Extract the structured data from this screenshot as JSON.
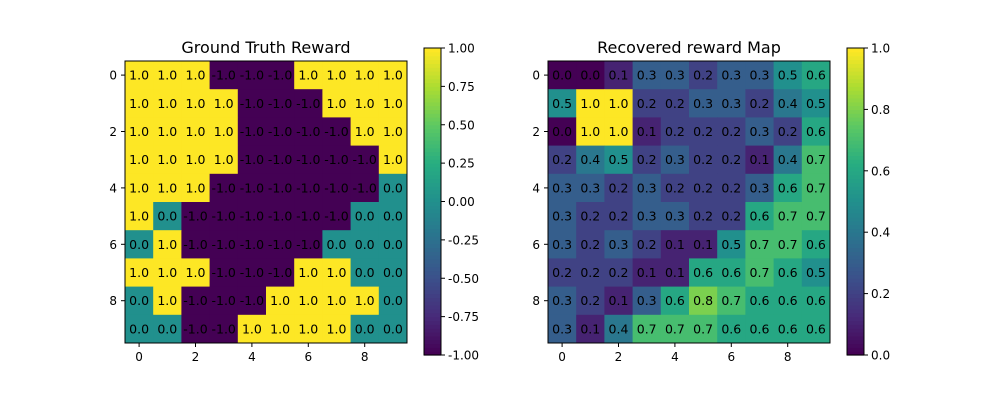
{
  "chart_data": [
    {
      "type": "heatmap",
      "title": "Ground Truth Reward",
      "xlabel": "",
      "ylabel": "",
      "x_ticks": [
        0,
        2,
        4,
        6,
        8
      ],
      "y_ticks": [
        0,
        2,
        4,
        6,
        8
      ],
      "colormap": "viridis",
      "vmin": -1.0,
      "vmax": 1.0,
      "colorbar_ticks": [
        "-1.00",
        "-0.75",
        "-0.50",
        "-0.25",
        "0.00",
        "0.25",
        "0.50",
        "0.75",
        "1.00"
      ],
      "values": [
        [
          1.0,
          1.0,
          1.0,
          -1.0,
          -1.0,
          -1.0,
          1.0,
          1.0,
          1.0,
          1.0
        ],
        [
          1.0,
          1.0,
          1.0,
          1.0,
          -1.0,
          -1.0,
          -1.0,
          1.0,
          1.0,
          1.0
        ],
        [
          1.0,
          1.0,
          1.0,
          1.0,
          -1.0,
          -1.0,
          -1.0,
          -1.0,
          1.0,
          1.0
        ],
        [
          1.0,
          1.0,
          1.0,
          1.0,
          -1.0,
          -1.0,
          -1.0,
          -1.0,
          -1.0,
          1.0
        ],
        [
          1.0,
          1.0,
          1.0,
          -1.0,
          -1.0,
          -1.0,
          -1.0,
          -1.0,
          -1.0,
          0.0
        ],
        [
          1.0,
          0.0,
          -1.0,
          -1.0,
          -1.0,
          -1.0,
          -1.0,
          -1.0,
          0.0,
          0.0
        ],
        [
          0.0,
          1.0,
          -1.0,
          -1.0,
          -1.0,
          -1.0,
          -1.0,
          0.0,
          0.0,
          0.0
        ],
        [
          1.0,
          1.0,
          1.0,
          -1.0,
          -1.0,
          -1.0,
          1.0,
          1.0,
          0.0,
          0.0
        ],
        [
          0.0,
          1.0,
          -1.0,
          -1.0,
          -1.0,
          1.0,
          1.0,
          1.0,
          1.0,
          0.0
        ],
        [
          0.0,
          0.0,
          -1.0,
          -1.0,
          1.0,
          1.0,
          1.0,
          1.0,
          0.0,
          0.0
        ]
      ]
    },
    {
      "type": "heatmap",
      "title": "Recovered reward Map",
      "xlabel": "",
      "ylabel": "",
      "x_ticks": [
        0,
        2,
        4,
        6,
        8
      ],
      "y_ticks": [
        0,
        2,
        4,
        6,
        8
      ],
      "colormap": "viridis",
      "vmin": 0.0,
      "vmax": 1.0,
      "colorbar_ticks": [
        "0.0",
        "0.2",
        "0.4",
        "0.6",
        "0.8",
        "1.0"
      ],
      "values": [
        [
          0.0,
          0.0,
          0.1,
          0.3,
          0.3,
          0.2,
          0.3,
          0.3,
          0.5,
          0.6
        ],
        [
          0.5,
          1.0,
          1.0,
          0.2,
          0.2,
          0.3,
          0.3,
          0.2,
          0.4,
          0.5
        ],
        [
          0.0,
          1.0,
          1.0,
          0.1,
          0.2,
          0.2,
          0.2,
          0.3,
          0.2,
          0.6
        ],
        [
          0.2,
          0.4,
          0.5,
          0.2,
          0.3,
          0.2,
          0.2,
          0.1,
          0.4,
          0.7
        ],
        [
          0.3,
          0.3,
          0.2,
          0.3,
          0.2,
          0.2,
          0.2,
          0.3,
          0.6,
          0.7
        ],
        [
          0.3,
          0.2,
          0.2,
          0.3,
          0.3,
          0.2,
          0.2,
          0.6,
          0.7,
          0.7
        ],
        [
          0.3,
          0.2,
          0.3,
          0.2,
          0.1,
          0.1,
          0.5,
          0.7,
          0.7,
          0.6
        ],
        [
          0.2,
          0.2,
          0.2,
          0.1,
          0.1,
          0.6,
          0.6,
          0.7,
          0.6,
          0.5
        ],
        [
          0.3,
          0.2,
          0.1,
          0.3,
          0.6,
          0.8,
          0.7,
          0.6,
          0.6,
          0.6
        ],
        [
          0.3,
          0.1,
          0.4,
          0.7,
          0.7,
          0.7,
          0.6,
          0.6,
          0.6,
          0.6
        ]
      ]
    }
  ]
}
